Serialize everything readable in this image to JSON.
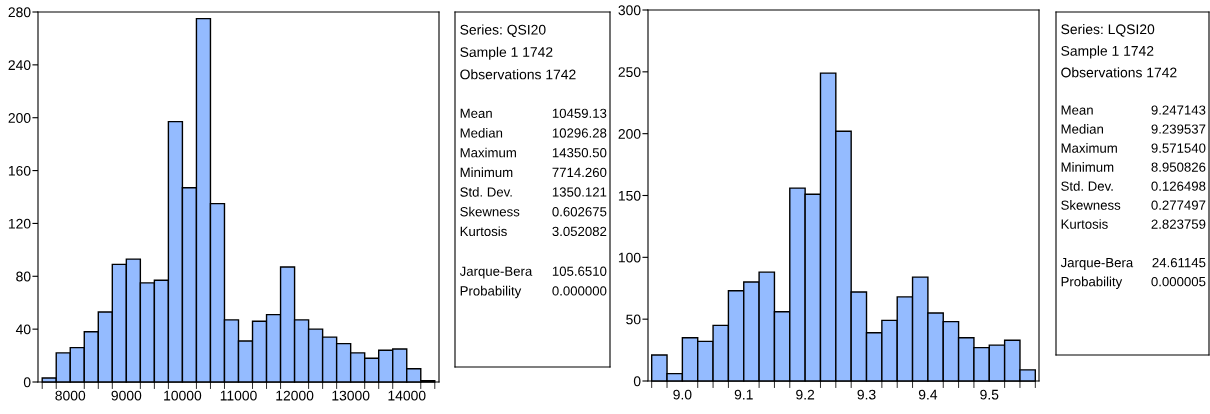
{
  "chart_data": [
    {
      "type": "histogram",
      "bins": [
        7500,
        7750,
        8000,
        8250,
        8500,
        8750,
        9000,
        9250,
        9500,
        9750,
        10000,
        10250,
        10500,
        10750,
        11000,
        11250,
        11500,
        11750,
        12000,
        12250,
        12500,
        12750,
        13000,
        13250,
        13500,
        13750,
        14000,
        14250,
        14500
      ],
      "values": [
        3,
        22,
        26,
        38,
        53,
        89,
        93,
        75,
        77,
        197,
        147,
        275,
        135,
        47,
        31,
        46,
        51,
        87,
        47,
        40,
        34,
        29,
        22,
        18,
        24,
        25,
        10,
        1
      ],
      "color": "#94bbff",
      "xlim": [
        7425,
        14575
      ],
      "xticks": [
        8000,
        9000,
        10000,
        11000,
        12000,
        13000,
        14000
      ],
      "ylim": [
        0,
        280
      ],
      "yticks": [
        0,
        40,
        80,
        120,
        160,
        200,
        240,
        280
      ],
      "grid": false,
      "legend": false
    },
    {
      "type": "other",
      "annotations": [
        "Series: QSI20",
        "Sample 1 1742",
        "Observations 1742",
        "Mean",
        "10459.13",
        "Median",
        "10296.28",
        "Maximum",
        "14350.50",
        "Minimum",
        "7714.260",
        "Std. Dev.",
        "1350.121",
        "Skewness",
        "0.602675",
        "Kurtosis",
        "3.052082",
        "Jarque-Bera",
        "105.6510",
        "Probability",
        "0.000000"
      ]
    },
    {
      "type": "histogram",
      "bins": [
        8.95,
        8.975,
        9.0,
        9.025,
        9.05,
        9.075,
        9.1,
        9.125,
        9.15,
        9.175,
        9.2,
        9.225,
        9.25,
        9.275,
        9.3,
        9.325,
        9.35,
        9.375,
        9.4,
        9.425,
        9.45,
        9.475,
        9.5,
        9.525,
        9.55,
        9.575
      ],
      "values": [
        21,
        6,
        35,
        32,
        45,
        73,
        80,
        88,
        56,
        156,
        151,
        249,
        202,
        72,
        39,
        49,
        68,
        84,
        55,
        48,
        35,
        27,
        29,
        33,
        9
      ],
      "color": "#94bbff",
      "xlim": [
        8.944,
        9.581
      ],
      "xticks": [
        {
          "value": 9.0,
          "label": "9.0"
        },
        9.1,
        9.2,
        9.3,
        9.4,
        9.5
      ],
      "ylim": [
        0,
        300
      ],
      "yticks": [
        0,
        50,
        100,
        150,
        200,
        250,
        300
      ],
      "grid": false,
      "legend": false
    },
    {
      "type": "other",
      "annotations": [
        "Series: LQSI20",
        "Sample 1 1742",
        "Observations 1742",
        "Mean",
        "9.247143",
        "Median",
        "9.239537",
        "Maximum",
        "9.571540",
        "Minimum",
        "8.950826",
        "Std. Dev.",
        "0.126498",
        "Skewness",
        "0.277497",
        "Kurtosis",
        "2.823759",
        "Jarque-Bera",
        "24.61145",
        "Probability",
        "0.000005"
      ]
    }
  ]
}
